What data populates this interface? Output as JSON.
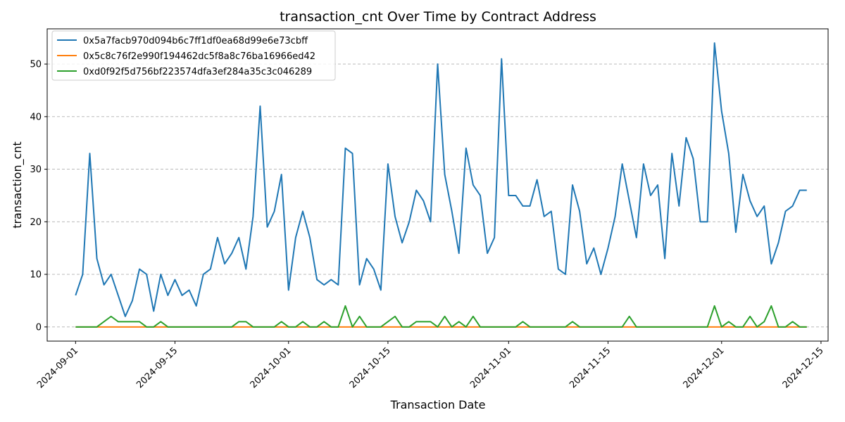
{
  "chart_data": {
    "type": "line",
    "title": "transaction_cnt Over Time by Contract Address",
    "xlabel": "Transaction Date",
    "ylabel": "transaction_cnt",
    "x_start": "2024-09-01",
    "xlim": [
      "2024-08-28",
      "2024-12-16"
    ],
    "ylim": [
      -2.7,
      56.7
    ],
    "xticks": [
      "2024-09-01",
      "2024-09-15",
      "2024-10-01",
      "2024-10-15",
      "2024-11-01",
      "2024-11-15",
      "2024-12-01",
      "2024-12-15"
    ],
    "yticks": [
      0,
      10,
      20,
      30,
      40,
      50
    ],
    "grid": "y-dashed",
    "legend_position": "top-left",
    "series": [
      {
        "name": "0x5a7facb970d094b6c7ff1df0ea68d99e6e73cbff",
        "color": "#1f77b4",
        "values": [
          6,
          10,
          33,
          13,
          8,
          10,
          6,
          2,
          5,
          11,
          10,
          3,
          10,
          6,
          9,
          6,
          7,
          4,
          10,
          11,
          17,
          12,
          14,
          17,
          11,
          21,
          42,
          19,
          22,
          29,
          7,
          17,
          22,
          17,
          9,
          8,
          9,
          8,
          34,
          33,
          8,
          13,
          11,
          7,
          31,
          21,
          16,
          20,
          26,
          24,
          20,
          50,
          29,
          22,
          14,
          34,
          27,
          25,
          14,
          17,
          51,
          25,
          25,
          23,
          23,
          28,
          21,
          22,
          11,
          10,
          27,
          22,
          12,
          15,
          10,
          15,
          21,
          31,
          24,
          17,
          31,
          25,
          27,
          13,
          33,
          23,
          36,
          32,
          20,
          20,
          54,
          41,
          33,
          18,
          29,
          24,
          21,
          23,
          12,
          16,
          22,
          23,
          26,
          26
        ]
      },
      {
        "name": "0x5c8c76f2e990f194462dc5f8a8c76ba16966ed42",
        "color": "#ff7f0e",
        "values": [
          0,
          0,
          0,
          0,
          0,
          0,
          0,
          0,
          0,
          0,
          0,
          0,
          0,
          0,
          0,
          0,
          0,
          0,
          0,
          0,
          0,
          0,
          0,
          0,
          0,
          0,
          0,
          0,
          0,
          0,
          0,
          0,
          0,
          0,
          0,
          0,
          0,
          0,
          0,
          0,
          0,
          0,
          0,
          0,
          0,
          0,
          0,
          0,
          0,
          0,
          0,
          0,
          0,
          0,
          0,
          0,
          0,
          0,
          0,
          0,
          0,
          0,
          0,
          0,
          0,
          0,
          0,
          0,
          0,
          0,
          0,
          0,
          0,
          0,
          0,
          0,
          0,
          0,
          0,
          0,
          0,
          0,
          0,
          0,
          0,
          0,
          0,
          0,
          0,
          0,
          0,
          0,
          0,
          0,
          0,
          0,
          0,
          0,
          0,
          0,
          0,
          0,
          0,
          0
        ]
      },
      {
        "name": "0xd0f92f5d756bf223574dfa3ef284a35c3c046289",
        "color": "#2ca02c",
        "values": [
          0,
          0,
          0,
          0,
          1,
          2,
          1,
          1,
          1,
          1,
          0,
          0,
          1,
          0,
          0,
          0,
          0,
          0,
          0,
          0,
          0,
          0,
          0,
          1,
          1,
          0,
          0,
          0,
          0,
          1,
          0,
          0,
          1,
          0,
          0,
          1,
          0,
          0,
          4,
          0,
          2,
          0,
          0,
          0,
          1,
          2,
          0,
          0,
          1,
          1,
          1,
          0,
          2,
          0,
          1,
          0,
          2,
          0,
          0,
          0,
          0,
          0,
          0,
          1,
          0,
          0,
          0,
          0,
          0,
          0,
          1,
          0,
          0,
          0,
          0,
          0,
          0,
          0,
          2,
          0,
          0,
          0,
          0,
          0,
          0,
          0,
          0,
          0,
          0,
          0,
          4,
          0,
          1,
          0,
          0,
          2,
          0,
          1,
          4,
          0,
          0,
          1,
          0,
          0
        ]
      }
    ]
  }
}
